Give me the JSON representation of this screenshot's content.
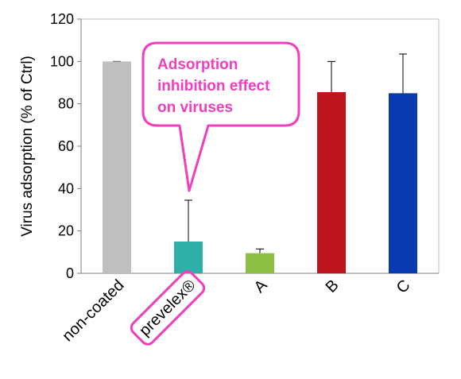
{
  "chart_data": {
    "type": "bar",
    "categories": [
      "non-coated",
      "prevelex®",
      "A",
      "B",
      "C"
    ],
    "values": [
      100,
      15,
      9.5,
      85.5,
      85
    ],
    "error_upper": [
      0,
      19.5,
      2,
      14.5,
      18.5
    ],
    "colors": [
      "#bfbfbf",
      "#2eb0a9",
      "#8dbf44",
      "#bd1520",
      "#0a3ab0"
    ],
    "xlabel": "",
    "ylabel": "Virus adsorption (% of Ctrl)",
    "ylim": [
      0,
      120
    ],
    "yticks": [
      0,
      20,
      40,
      60,
      80,
      100,
      120
    ],
    "grid": false,
    "highlight_category": "prevelex®",
    "callout": {
      "lines": [
        "Adsorption",
        "inhibition effect",
        "on viruses"
      ],
      "color": "#f03ebe"
    }
  }
}
